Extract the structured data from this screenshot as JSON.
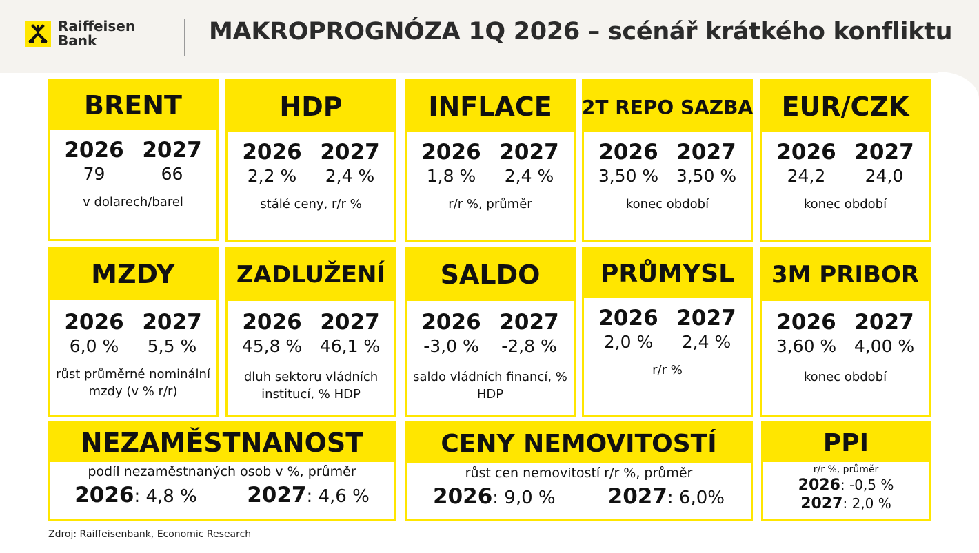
{
  "header": {
    "logo_line1": "Raiffeisen",
    "logo_line2": "Bank",
    "logo_icon": "raiffeisen-crossed-gables-icon",
    "title": "MAKROPROGNÓZA 1Q 2026 – scénář krátkého konfliktu"
  },
  "colors": {
    "accent": "#ffe600",
    "text": "#111111",
    "header_bg": "#f5f3ef"
  },
  "cards": [
    {
      "title": "BRENT",
      "y1": "2026",
      "v1": "79",
      "y2": "2027",
      "v2": "66",
      "note": "v dolarech/barel"
    },
    {
      "title": "HDP",
      "y1": "2026",
      "v1": "2,2 %",
      "y2": "2027",
      "v2": "2,4 %",
      "note": "stálé ceny, r/r %"
    },
    {
      "title": "INFLACE",
      "y1": "2026",
      "v1": "1,8 %",
      "y2": "2027",
      "v2": "2,4 %",
      "note": "r/r %, průměr"
    },
    {
      "title": "2T REPO SAZBA",
      "y1": "2026",
      "v1": "3,50 %",
      "y2": "2027",
      "v2": "3,50 %",
      "note": "konec období"
    },
    {
      "title": "EUR/CZK",
      "y1": "2026",
      "v1": "24,2",
      "y2": "2027",
      "v2": "24,0",
      "note": "konec období"
    },
    {
      "title": "MZDY",
      "y1": "2026",
      "v1": "6,0 %",
      "y2": "2027",
      "v2": "5,5 %",
      "note": "růst průměrné nominální mzdy (v % r/r)"
    },
    {
      "title": "ZADLUŽENÍ",
      "y1": "2026",
      "v1": "45,8 %",
      "y2": "2027",
      "v2": "46,1 %",
      "note": "dluh sektoru vládních institucí, % HDP"
    },
    {
      "title": "SALDO",
      "y1": "2026",
      "v1": "-3,0 %",
      "y2": "2027",
      "v2": "-2,8 %",
      "note": "saldo vládních financí, % HDP"
    },
    {
      "title": "PRŮMYSL",
      "y1": "2026",
      "v1": "2,0 %",
      "y2": "2027",
      "v2": "2,4 %",
      "note": "r/r %"
    },
    {
      "title": "3M PRIBOR",
      "y1": "2026",
      "v1": "3,60 %",
      "y2": "2027",
      "v2": "4,00 %",
      "note": "konec období"
    }
  ],
  "wide": [
    {
      "title": "NEZAMĚSTNANOST",
      "sub": "podíl nezaměstnaných osob v %, průměr",
      "y1": "2026",
      "v1": ": 4,8 %",
      "y2": "2027",
      "v2": ": 4,6 %"
    },
    {
      "title": "CENY NEMOVITOSTÍ",
      "sub": "růst cen nemovitostí r/r %, průměr",
      "y1": "2026",
      "v1": ": 9,0 %",
      "y2": "2027",
      "v2": ": 6,0%"
    }
  ],
  "ppi": {
    "title": "PPI",
    "sub": "r/r %,  průměr",
    "y1": "2026",
    "v1": ": -0,5 %",
    "y2": "2027",
    "v2": ": 2,0 %"
  },
  "source": "Zdroj: Raiffeisenbank, Economic Research"
}
